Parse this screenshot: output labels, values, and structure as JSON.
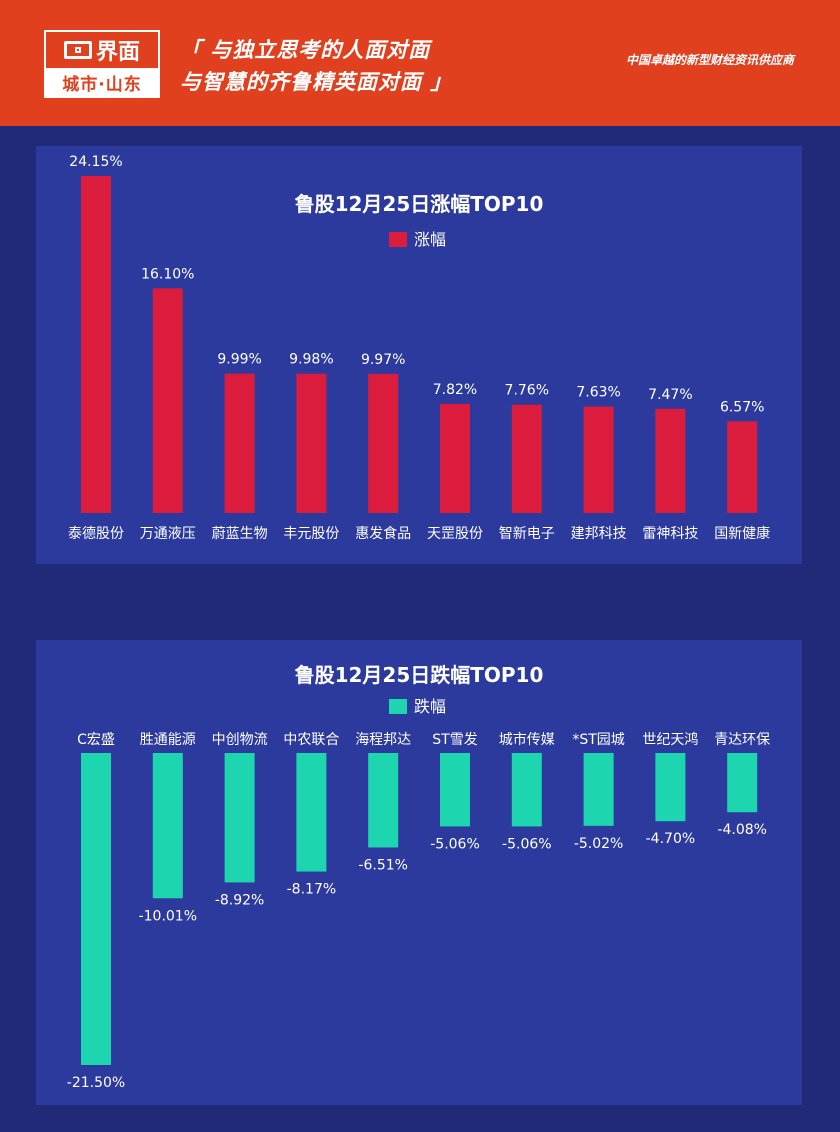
{
  "header": {
    "logo_main": "界面",
    "logo_sub": "城市·山东",
    "slogan_line1": "「 与独立思考的人面对面",
    "slogan_line2": "与智慧的齐鲁精英面对面 」",
    "tagline": "中国卓越的新型财经资讯供应商"
  },
  "colors": {
    "header_bg": "#e0401e",
    "page_bg": "#212a78",
    "panel_bg": "#2c3a9d",
    "up_bar": "#dc1c3c",
    "down_bar": "#1dd6b0",
    "text": "#ffffff"
  },
  "chart_data": [
    {
      "type": "bar",
      "title": "鲁股12月25日涨幅TOP10",
      "categories": [
        "泰德股份",
        "万通液压",
        "蔚蓝生物",
        "丰元股份",
        "惠发食品",
        "天罡股份",
        "智新电子",
        "建邦科技",
        "雷神科技",
        "国新健康"
      ],
      "series": [
        {
          "name": "涨幅",
          "values": [
            24.15,
            16.1,
            9.99,
            9.98,
            9.97,
            7.82,
            7.76,
            7.63,
            7.47,
            6.57
          ]
        }
      ],
      "data_labels": [
        "24.15%",
        "16.10%",
        "9.99%",
        "9.98%",
        "9.97%",
        "7.82%",
        "7.76%",
        "7.63%",
        "7.47%",
        "6.57%"
      ],
      "legend": "top-center",
      "grid": false,
      "ylim": [
        0,
        24.15
      ]
    },
    {
      "type": "bar",
      "title": "鲁股12月25日跌幅TOP10",
      "categories": [
        "C宏盛",
        "胜通能源",
        "中创物流",
        "中农联合",
        "海程邦达",
        "ST雪发",
        "城市传媒",
        "*ST园城",
        "世纪天鸿",
        "青达环保"
      ],
      "series": [
        {
          "name": "跌幅",
          "values": [
            -21.5,
            -10.01,
            -8.92,
            -8.17,
            -6.51,
            -5.06,
            -5.06,
            -5.02,
            -4.7,
            -4.08
          ]
        }
      ],
      "data_labels": [
        "-21.50%",
        "-10.01%",
        "-8.92%",
        "-8.17%",
        "-6.51%",
        "-5.06%",
        "-5.06%",
        "-5.02%",
        "-4.70%",
        "-4.08%"
      ],
      "legend": "top-center",
      "grid": false,
      "ylim": [
        -21.5,
        0
      ]
    }
  ]
}
